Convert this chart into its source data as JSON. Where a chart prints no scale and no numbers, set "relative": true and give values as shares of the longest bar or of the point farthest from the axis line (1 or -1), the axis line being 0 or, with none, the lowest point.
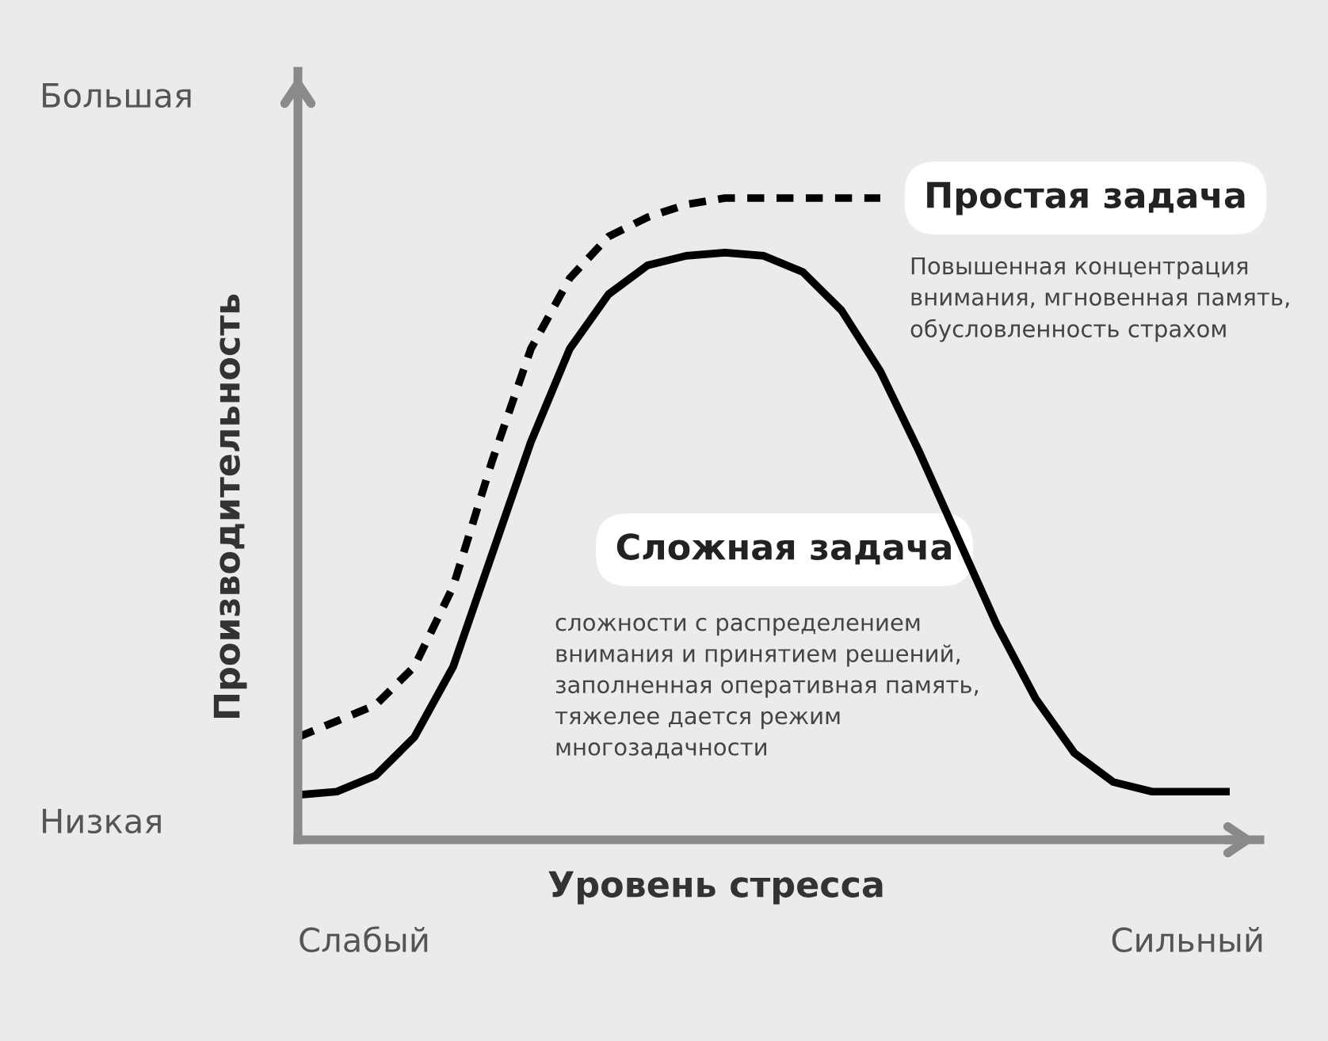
{
  "chart_data": {
    "type": "line",
    "relative": true,
    "xlabel": "Уровень стресса",
    "ylabel": "Производительность",
    "legend": false,
    "marker": "none",
    "categories": [
      null,
      null,
      null,
      null,
      null,
      null,
      null,
      null,
      null,
      null,
      null,
      null,
      null,
      null,
      null,
      null,
      null,
      null,
      null,
      null,
      null,
      null,
      null,
      null,
      null
    ],
    "series": [
      {
        "name": "Простая задача",
        "color": "#000000",
        "line_style": "dotted",
        "values": [
          0.16,
          0.185,
          0.21,
          0.27,
          0.395,
          0.59,
          0.765,
          0.875,
          0.94,
          0.97,
          0.99,
          1,
          1,
          1,
          1,
          1,
          null,
          null,
          null,
          null,
          null,
          null,
          null,
          null,
          null
        ]
      },
      {
        "name": "Сложная задача",
        "color": "#000000",
        "line_style": "solid",
        "values": [
          0.07,
          0.075,
          0.1,
          0.16,
          0.27,
          0.445,
          0.62,
          0.765,
          0.85,
          0.895,
          0.91,
          0.915,
          0.91,
          0.885,
          0.825,
          0.73,
          0.605,
          0.47,
          0.335,
          0.22,
          0.135,
          0.09,
          0.075,
          0.075,
          0.075
        ]
      }
    ],
    "annotations": [
      "Повышенная концентрация\nвнимания, мгновенная память,\nобусловленность страхом",
      "сложности с распределением\nвнимания и принятием решений,\nзаполненная оперативная память,\nтяжелее дается режим\nмногозадачности",
      "Большая",
      "Низкая",
      "Слабый",
      "Сильный"
    ]
  }
}
